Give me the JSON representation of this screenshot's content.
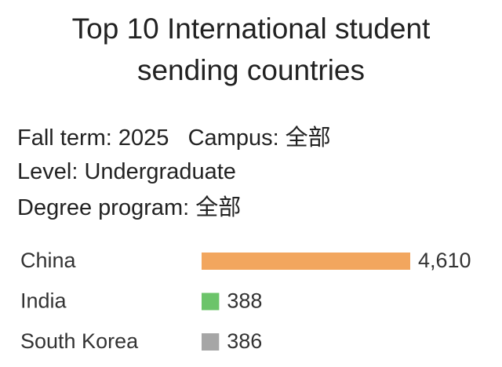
{
  "chart_data": {
    "type": "bar",
    "orientation": "horizontal",
    "title": "Top 10 International student sending countries",
    "filters": [
      "Fall term: 2025   Campus: 全部",
      "Level: Undergraduate",
      "Degree program: 全部"
    ],
    "categories": [
      "China",
      "India",
      "South Korea"
    ],
    "values": [
      4610,
      388,
      386
    ],
    "value_labels": [
      "4,610",
      "388",
      "386"
    ],
    "colors": [
      "#f2a65e",
      "#6cc46a",
      "#a6a6a6"
    ]
  }
}
